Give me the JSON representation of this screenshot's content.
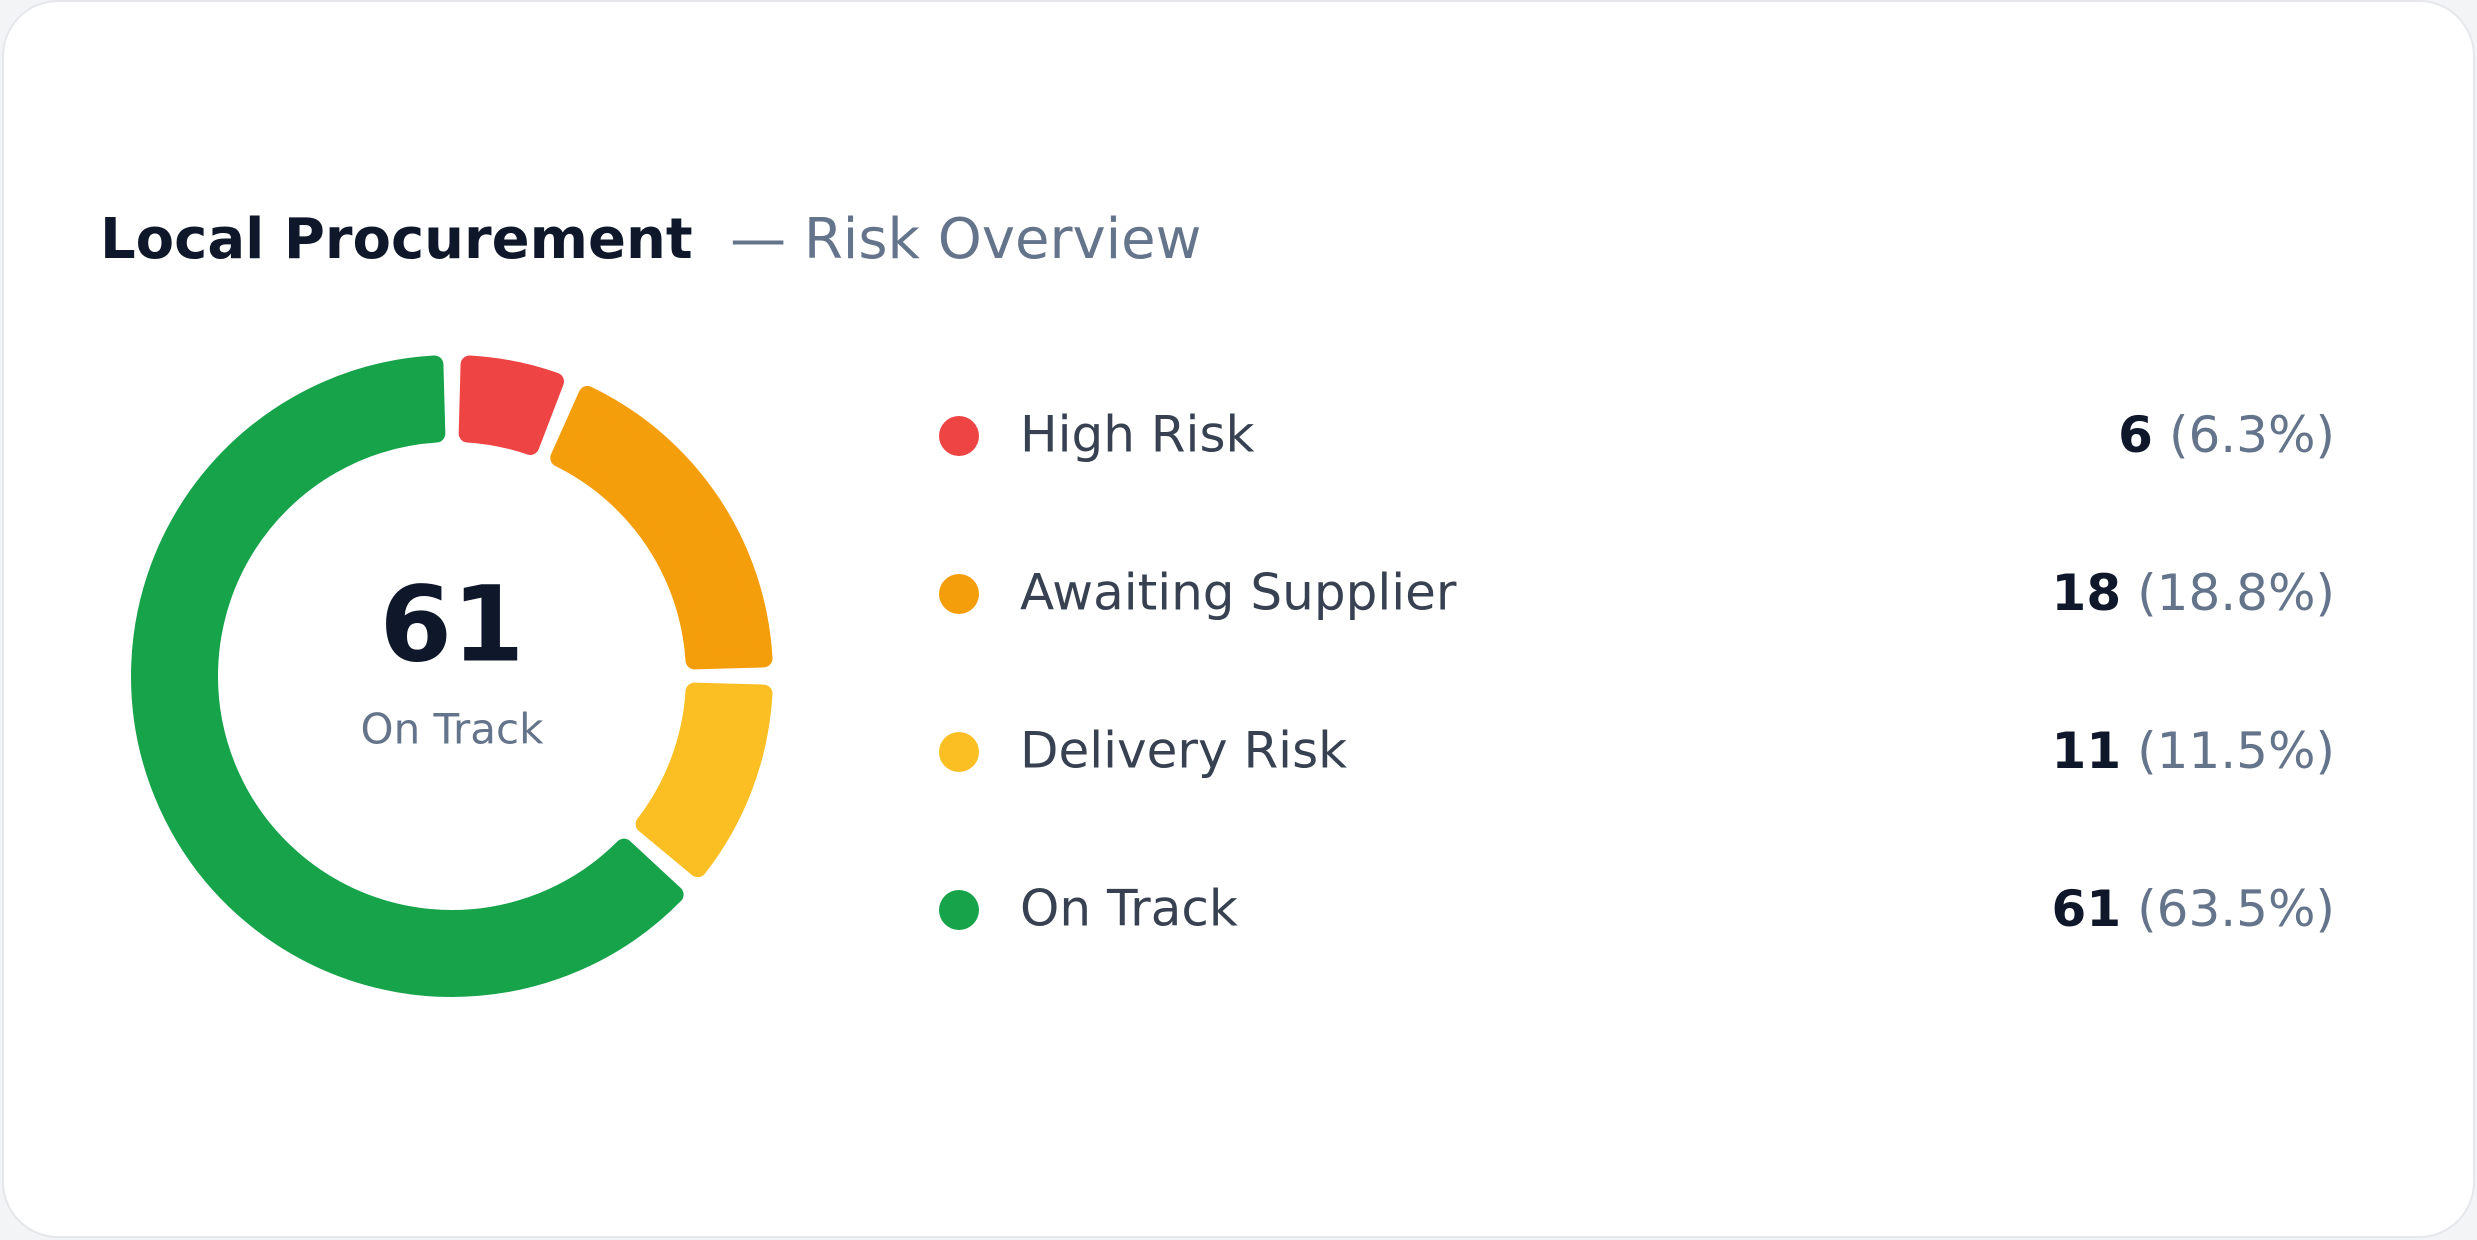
{
  "chart_data": {
    "type": "donut",
    "title": "Local Procurement",
    "subtitle": "— Risk Overview",
    "categories": [
      "High Risk",
      "Awaiting Supplier",
      "Delivery Risk",
      "On Track"
    ],
    "values": [
      6,
      18,
      11,
      61
    ],
    "percent_labels": [
      "(6.3%)",
      "(18.8%)",
      "(11.5%)",
      "(63.5%)"
    ],
    "colors": [
      "#ef4444",
      "#f59e0b",
      "#fbbf24",
      "#16a34a"
    ],
    "center_index": 3
  }
}
